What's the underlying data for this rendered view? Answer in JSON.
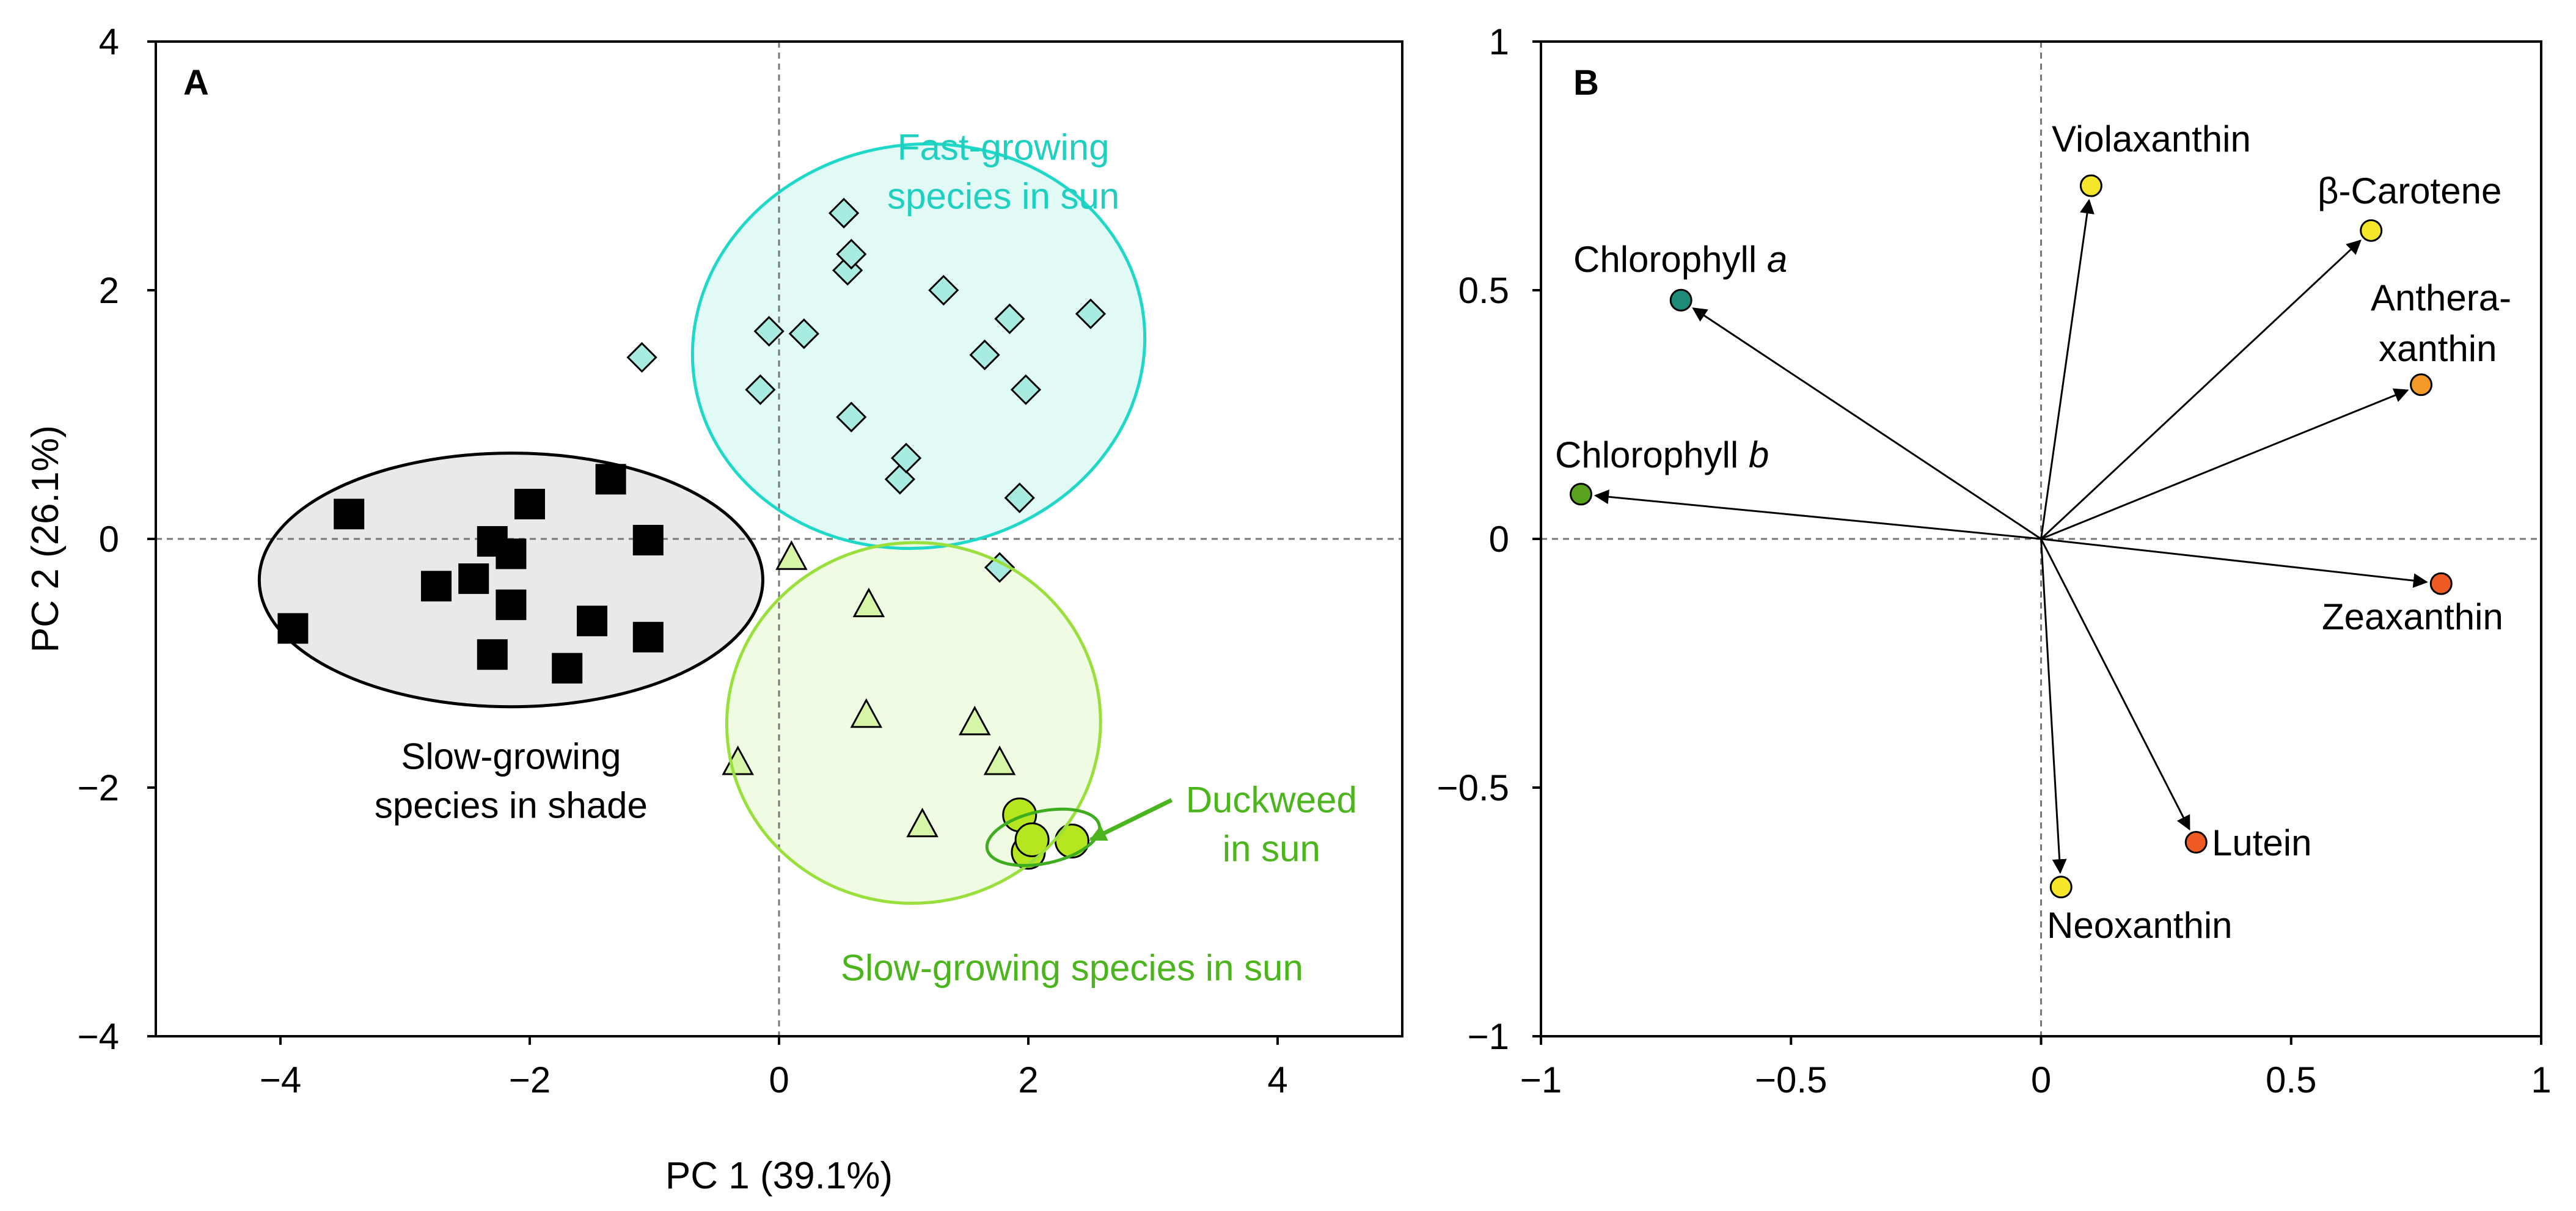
{
  "chart_data": [
    {
      "type": "scatter",
      "panel_label": "A",
      "xlabel": "PC 1 (39.1%)",
      "ylabel": "PC 2 (26.1%)",
      "xlim": [
        -5,
        5
      ],
      "ylim": [
        -4,
        4
      ],
      "xticks": [
        -4,
        -2,
        0,
        2,
        4
      ],
      "yticks": [
        -4,
        -2,
        0,
        2,
        4
      ],
      "xtick_labels": [
        "−4",
        "−2",
        "0",
        "2",
        "4"
      ],
      "ytick_labels": [
        "−4",
        "−2",
        "0",
        "2",
        "4"
      ],
      "zero_lines": true,
      "grid": false,
      "series": [
        {
          "marker": "square",
          "color": "#000000",
          "points": [
            [
              -3.9,
              -0.72
            ],
            [
              -3.45,
              0.2
            ],
            [
              -2.75,
              -0.38
            ],
            [
              -2.45,
              -0.32
            ],
            [
              -2.3,
              -0.02
            ],
            [
              -2.15,
              -0.12
            ],
            [
              -2.15,
              -0.53
            ],
            [
              -2.3,
              -0.93
            ],
            [
              -2.0,
              0.28
            ],
            [
              -1.7,
              -1.04
            ],
            [
              -1.5,
              -0.66
            ],
            [
              -1.35,
              0.48
            ],
            [
              -1.05,
              -0.01
            ],
            [
              -1.05,
              -0.79
            ]
          ]
        },
        {
          "marker": "diamond",
          "color": "#a8ebe0",
          "points": [
            [
              -1.1,
              1.46
            ],
            [
              -0.15,
              1.2
            ],
            [
              -0.08,
              1.67
            ],
            [
              0.2,
              1.65
            ],
            [
              0.52,
              2.62
            ],
            [
              0.55,
              2.16
            ],
            [
              0.58,
              2.29
            ],
            [
              0.58,
              0.98
            ],
            [
              0.97,
              0.48
            ],
            [
              1.02,
              0.65
            ],
            [
              1.32,
              2.0
            ],
            [
              1.65,
              1.48
            ],
            [
              1.77,
              -0.23
            ],
            [
              1.85,
              1.77
            ],
            [
              1.93,
              0.33
            ],
            [
              1.98,
              1.2
            ],
            [
              2.5,
              1.81
            ]
          ]
        },
        {
          "marker": "triangle",
          "color": "#d6f5a8",
          "points": [
            [
              -0.33,
              -1.8
            ],
            [
              0.1,
              -0.15
            ],
            [
              0.7,
              -1.42
            ],
            [
              0.72,
              -0.53
            ],
            [
              1.15,
              -2.3
            ],
            [
              1.57,
              -1.48
            ],
            [
              1.77,
              -1.8
            ]
          ]
        },
        {
          "marker": "circle",
          "color": "#b6e620",
          "points": [
            [
              1.93,
              -2.22
            ],
            [
              2.0,
              -2.52
            ],
            [
              2.03,
              -2.42
            ],
            [
              2.35,
              -2.43
            ]
          ]
        }
      ],
      "ellipses": [
        {
          "color": "#000000",
          "fill": "#e2e2e2",
          "cx": -2.15,
          "cy": -0.33,
          "rx": 2.02,
          "ry": 1.02,
          "rotation": 0
        },
        {
          "color": "#20d8c8",
          "fill": "#d7f8f3",
          "cx": 1.12,
          "cy": 1.55,
          "rx": 1.82,
          "ry": 1.62,
          "rotation": -10
        },
        {
          "color": "#9ae03c",
          "fill": "#eaf9d8",
          "cx": 1.08,
          "cy": -1.48,
          "rx": 1.5,
          "ry": 1.45,
          "rotation": -6
        },
        {
          "color": "#3fae1e",
          "fill": "none",
          "cx": 2.12,
          "cy": -2.4,
          "rx": 0.46,
          "ry": 0.21,
          "rotation": -12
        }
      ],
      "annotations": [
        {
          "lines": [
            "Fast-growing",
            "species in sun"
          ],
          "color": "#1fd0c0",
          "x": 1.8,
          "y": 3.05,
          "align": "middle"
        },
        {
          "lines": [
            "Slow-growing",
            "species in shade"
          ],
          "color": "#000000",
          "x": -2.15,
          "y": -1.85,
          "align": "middle"
        },
        {
          "lines": [
            "Duckweed",
            "in sun"
          ],
          "color": "#4cb51e",
          "x": 3.95,
          "y": -2.2,
          "align": "middle"
        },
        {
          "lines": [
            "Slow-growing species in sun"
          ],
          "color": "#4cb51e",
          "x": 2.35,
          "y": -3.55,
          "align": "middle"
        }
      ],
      "arrow": {
        "from": [
          3.15,
          -2.1
        ],
        "to": [
          2.5,
          -2.42
        ],
        "color": "#4cb51e"
      }
    },
    {
      "type": "scatter",
      "panel_label": "B",
      "xlim": [
        -1,
        1
      ],
      "ylim": [
        -1,
        1
      ],
      "xticks": [
        -1,
        -0.5,
        0,
        0.5,
        1
      ],
      "yticks": [
        -1,
        -0.5,
        0,
        0.5,
        1
      ],
      "xtick_labels": [
        "−1",
        "−0.5",
        "0",
        "0.5",
        "1"
      ],
      "ytick_labels": [
        "−1",
        "−0.5",
        "0",
        "0.5",
        "1"
      ],
      "zero_lines": true,
      "grid": false,
      "loadings": [
        {
          "name": "Chlorophyll a",
          "x": -0.72,
          "y": 0.48,
          "color": "#1e8a78"
        },
        {
          "name": "Chlorophyll b",
          "x": -0.92,
          "y": 0.09,
          "color": "#5aa21e"
        },
        {
          "name": "Violaxanthin",
          "x": 0.1,
          "y": 0.71,
          "color": "#f5e62a"
        },
        {
          "name": "β-Carotene",
          "x": 0.66,
          "y": 0.62,
          "color": "#f5e62a"
        },
        {
          "name": "Anthera-xanthin",
          "x": 0.76,
          "y": 0.31,
          "color": "#f59a28"
        },
        {
          "name": "Zeaxanthin",
          "x": 0.8,
          "y": -0.09,
          "color": "#ee5a24"
        },
        {
          "name": "Lutein",
          "x": 0.31,
          "y": -0.61,
          "color": "#ee5a24"
        },
        {
          "name": "Neoxanthin",
          "x": 0.04,
          "y": -0.7,
          "color": "#f5e62a"
        }
      ]
    }
  ],
  "labels": {
    "chl_a": {
      "main": "Chlorophyll ",
      "italic": "a"
    },
    "chl_b": {
      "main": "Chlorophyll ",
      "italic": "b"
    },
    "violaxanthin": "Violaxanthin",
    "beta_carotene": "β-Carotene",
    "anthera_line1": "Anthera-",
    "anthera_line2": "xanthin",
    "zeaxanthin": "Zeaxanthin",
    "lutein": "Lutein",
    "neoxanthin": "Neoxanthin"
  }
}
